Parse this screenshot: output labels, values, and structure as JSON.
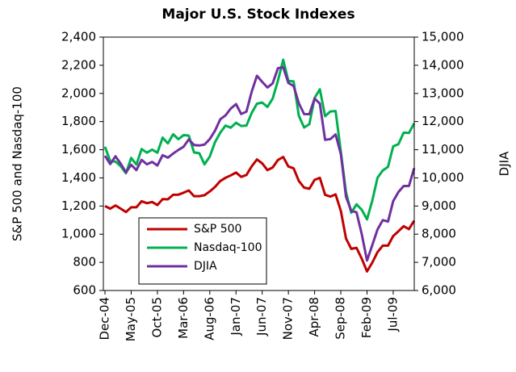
{
  "chart_data": {
    "type": "line",
    "title": "Major U.S. Stock Indexes",
    "y_label": "S&P 500 and Nasdaq-100",
    "y2_label": "DJIA",
    "categories": [
      "Dec-04",
      null,
      null,
      null,
      null,
      "May-05",
      null,
      null,
      null,
      null,
      "Oct-05",
      null,
      null,
      null,
      null,
      "Mar-06",
      null,
      null,
      null,
      null,
      "Aug-06",
      null,
      null,
      null,
      null,
      "Jan-07",
      null,
      null,
      null,
      null,
      "Jun-07",
      null,
      null,
      null,
      null,
      "Nov-07",
      null,
      null,
      null,
      null,
      "Apr-08",
      null,
      null,
      null,
      null,
      "Sep-08",
      null,
      null,
      null,
      null,
      "Feb-09",
      null,
      null,
      null,
      null,
      "Jul-09",
      null,
      null,
      null,
      null
    ],
    "series": [
      {
        "name": "S&P 500",
        "color": "#c00000",
        "values": [
          1200,
          1181,
          1204,
          1181,
          1157,
          1191,
          1191,
          1234,
          1220,
          1229,
          1207,
          1249,
          1248,
          1280,
          1281,
          1295,
          1311,
          1270,
          1270,
          1277,
          1304,
          1336,
          1378,
          1401,
          1418,
          1438,
          1407,
          1421,
          1482,
          1531,
          1503,
          1455,
          1474,
          1527,
          1549,
          1481,
          1468,
          1378,
          1331,
          1323,
          1386,
          1400,
          1280,
          1267,
          1283,
          1165,
          969,
          896,
          903,
          826,
          735,
          798,
          873,
          919,
          919,
          987,
          1021,
          1057,
          1036,
          1096
        ]
      },
      {
        "name": "Nasdaq-100",
        "color": "#00b050",
        "values": [
          1621,
          1519,
          1516,
          1483,
          1433,
          1542,
          1494,
          1605,
          1579,
          1601,
          1579,
          1686,
          1645,
          1710,
          1675,
          1704,
          1700,
          1581,
          1575,
          1496,
          1552,
          1654,
          1721,
          1772,
          1757,
          1792,
          1769,
          1772,
          1862,
          1927,
          1935,
          1904,
          1964,
          2091,
          2239,
          2089,
          2085,
          1841,
          1758,
          1782,
          1968,
          2029,
          1838,
          1872,
          1875,
          1586,
          1297,
          1152,
          1212,
          1173,
          1105,
          1238,
          1401,
          1453,
          1478,
          1624,
          1640,
          1721,
          1719,
          1788
        ]
      },
      {
        "name": "DJIA",
        "color": "#7030a0",
        "axis": "y2",
        "values": [
          10783,
          10490,
          10766,
          10504,
          10193,
          10467,
          10275,
          10641,
          10482,
          10569,
          10440,
          10806,
          10718,
          10865,
          10993,
          11109,
          11367,
          11168,
          11150,
          11186,
          11381,
          11679,
          12081,
          12222,
          12463,
          12622,
          12268,
          12354,
          13063,
          13628,
          13409,
          13212,
          13358,
          13896,
          13930,
          13372,
          13265,
          12650,
          12266,
          12263,
          12820,
          12638,
          11350,
          11378,
          11544,
          10851,
          9325,
          8829,
          8776,
          8001,
          7063,
          7609,
          8168,
          8500,
          8447,
          9172,
          9496,
          9712,
          9713,
          10345
        ]
      }
    ],
    "ylim": [
      600,
      2400
    ],
    "yticks": [
      600,
      800,
      {
        "value": 1000,
        "label": "1,000"
      },
      {
        "value": 1200,
        "label": "1,200"
      },
      {
        "value": 1400,
        "label": "1,400"
      },
      {
        "value": 1600,
        "label": "1,600"
      },
      {
        "value": 1800,
        "label": "1,800"
      },
      {
        "value": 2000,
        "label": "2,000"
      },
      {
        "value": 2200,
        "label": "2,200"
      },
      {
        "value": 2400,
        "label": "2,400"
      }
    ],
    "y2lim": [
      6000,
      15000
    ],
    "y2ticks": [
      {
        "value": 6000,
        "label": "6,000"
      },
      {
        "value": 7000,
        "label": "7,000"
      },
      {
        "value": 8000,
        "label": "8,000"
      },
      {
        "value": 9000,
        "label": "9,000"
      },
      {
        "value": 10000,
        "label": "10,000"
      },
      {
        "value": 11000,
        "label": "11,000"
      },
      {
        "value": 12000,
        "label": "12,000"
      },
      {
        "value": 13000,
        "label": "13,000"
      },
      {
        "value": 14000,
        "label": "14,000"
      },
      {
        "value": 15000,
        "label": "15,000"
      }
    ],
    "grid": false
  }
}
